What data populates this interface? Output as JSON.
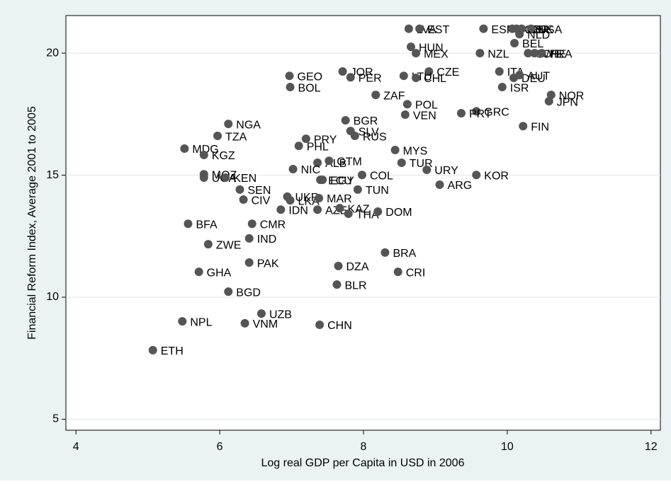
{
  "chart_data": {
    "type": "scatter",
    "x_label": "Log real GDP per Capita in USD in 2006",
    "y_label": "Financial Reform Index, Average 2001 to 2005",
    "xlim": [
      3.86,
      12.13
    ],
    "ylim": [
      4.55,
      21.54
    ],
    "xticks": [
      4,
      6,
      8,
      10,
      12
    ],
    "yticks": [
      5,
      10,
      15,
      20
    ],
    "grid": true,
    "color": "#555555",
    "labels": [
      "LVA",
      "EST",
      "ESP",
      "AUS",
      "GBR",
      "DNK",
      "USA",
      "NLD",
      "BEL",
      "HUN",
      "MEX",
      "NZL",
      "SWE",
      "CHE",
      "FRA",
      "GEO",
      "JOR",
      "PER",
      "CZE",
      "LTU",
      "CHL",
      "ITA",
      "DEU",
      "AUT",
      "BOL",
      "ISR",
      "ZAF",
      "NOR",
      "JPN",
      "POL",
      "NGA",
      "GRC",
      "PRT",
      "BGR",
      "VEN",
      "FIN",
      "SLV",
      "RUS",
      "TZA",
      "PRY",
      "PHL",
      "MDG",
      "MYS",
      "KGZ",
      "ALB",
      "GTM",
      "TUR",
      "NIC",
      "URY",
      "COL",
      "KOR",
      "MOZ",
      "UGA",
      "KEN",
      "ECU",
      "EGY",
      "SEN",
      "TUN",
      "ARG",
      "UKR",
      "LKA",
      "MAR",
      "CIV",
      "IDN",
      "AZE",
      "KAZ",
      "THA",
      "DOM",
      "BFA",
      "CMR",
      "IND",
      "ZWE",
      "BRA",
      "PAK",
      "DZA",
      "GHA",
      "CRI",
      "BGD",
      "BLR",
      "UZB",
      "NPL",
      "VNM",
      "CHN",
      "ETH"
    ],
    "x": [
      8.63,
      8.78,
      9.67,
      10.07,
      10.13,
      10.2,
      10.33,
      10.17,
      10.1,
      8.66,
      8.73,
      9.62,
      10.29,
      10.38,
      10.48,
      6.97,
      7.71,
      7.82,
      8.91,
      8.56,
      8.73,
      9.89,
      10.09,
      10.17,
      6.98,
      9.93,
      8.17,
      10.61,
      10.58,
      8.61,
      6.12,
      9.57,
      9.36,
      7.75,
      8.58,
      10.22,
      7.82,
      7.88,
      5.97,
      7.2,
      7.1,
      5.51,
      8.44,
      5.78,
      7.36,
      7.52,
      8.53,
      7.02,
      8.88,
      7.98,
      9.57,
      5.78,
      5.78,
      6.08,
      7.4,
      7.43,
      6.28,
      7.92,
      9.06,
      6.94,
      6.98,
      7.38,
      6.33,
      6.85,
      7.36,
      7.67,
      7.79,
      8.2,
      5.56,
      6.45,
      6.41,
      5.84,
      8.3,
      6.41,
      7.65,
      5.71,
      8.48,
      6.12,
      7.63,
      6.58,
      5.48,
      6.35,
      7.39,
      5.07
    ],
    "y": [
      21.0,
      21.0,
      21.0,
      21.0,
      21.0,
      21.0,
      21.0,
      20.78,
      20.41,
      20.26,
      20.0,
      20.0,
      20.0,
      20.0,
      20.0,
      19.07,
      19.25,
      19.01,
      19.25,
      19.07,
      18.99,
      19.25,
      18.99,
      19.1,
      18.61,
      18.61,
      18.29,
      18.29,
      18.03,
      17.91,
      17.1,
      17.62,
      17.54,
      17.25,
      17.48,
      17.01,
      16.81,
      16.61,
      16.61,
      16.49,
      16.2,
      16.09,
      16.03,
      15.83,
      15.51,
      15.59,
      15.51,
      15.25,
      15.22,
      15.01,
      15.01,
      15.04,
      14.9,
      14.9,
      14.81,
      14.81,
      14.41,
      14.41,
      14.61,
      14.12,
      13.97,
      14.06,
      14.0,
      13.59,
      13.59,
      13.65,
      13.42,
      13.51,
      13.01,
      13.01,
      12.41,
      12.17,
      11.83,
      11.42,
      11.28,
      11.04,
      11.04,
      10.23,
      10.52,
      9.33,
      9.01,
      8.93,
      8.87,
      7.83
    ]
  }
}
